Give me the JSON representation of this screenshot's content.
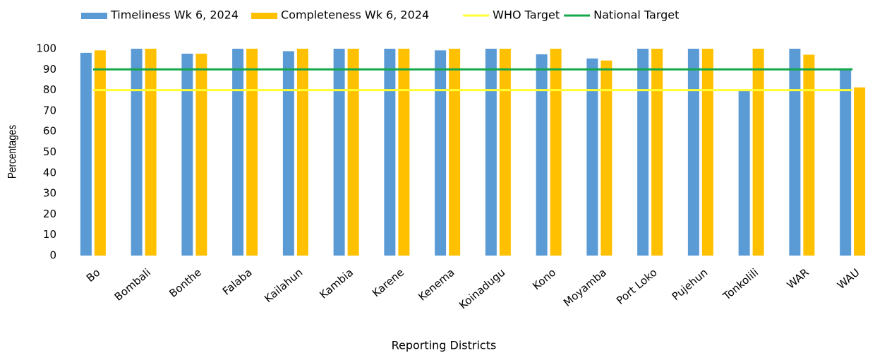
{
  "chart_data": {
    "type": "bar",
    "x_label": "Reporting Districts",
    "y_label": "Percentages",
    "categories": [
      "Bo",
      "Bombali",
      "Bonthe",
      "Falaba",
      "Kailahun",
      "Kambia",
      "Karene",
      "Kenema",
      "Koinadugu",
      "Kono",
      "Moyamba",
      "Port Loko",
      "Pujehun",
      "Tonkolili",
      "WAR",
      "WAU"
    ],
    "series": [
      {
        "name": "Timeliness Wk 6, 2024",
        "color": "#5b9bd5",
        "type": "bar",
        "values": [
          98,
          100,
          97.6,
          100,
          98.8,
          100,
          100,
          99.2,
          100,
          97.3,
          95.3,
          100,
          100,
          80,
          100,
          90.5
        ]
      },
      {
        "name": "Completeness Wk 6, 2024",
        "color": "#ffc000",
        "type": "bar",
        "values": [
          99.2,
          100,
          97.6,
          100,
          100,
          100,
          100,
          100,
          100,
          100,
          94.3,
          100,
          100,
          100,
          97.1,
          81.3
        ]
      },
      {
        "name": "WHO Target",
        "color": "#ffff33",
        "type": "line",
        "values": [
          80,
          80,
          80,
          80,
          80,
          80,
          80,
          80,
          80,
          80,
          80,
          80,
          80,
          80,
          80,
          80
        ]
      },
      {
        "name": "National Target",
        "color": "#14a84a",
        "type": "line",
        "values": [
          90,
          90,
          90,
          90,
          90,
          90,
          90,
          90,
          90,
          90,
          90,
          90,
          90,
          90,
          90,
          90
        ]
      }
    ],
    "ylim": [
      0,
      100
    ],
    "yticks": [
      0,
      10,
      20,
      30,
      40,
      50,
      60,
      70,
      80,
      90,
      100
    ],
    "grid": false,
    "legend": "top"
  }
}
